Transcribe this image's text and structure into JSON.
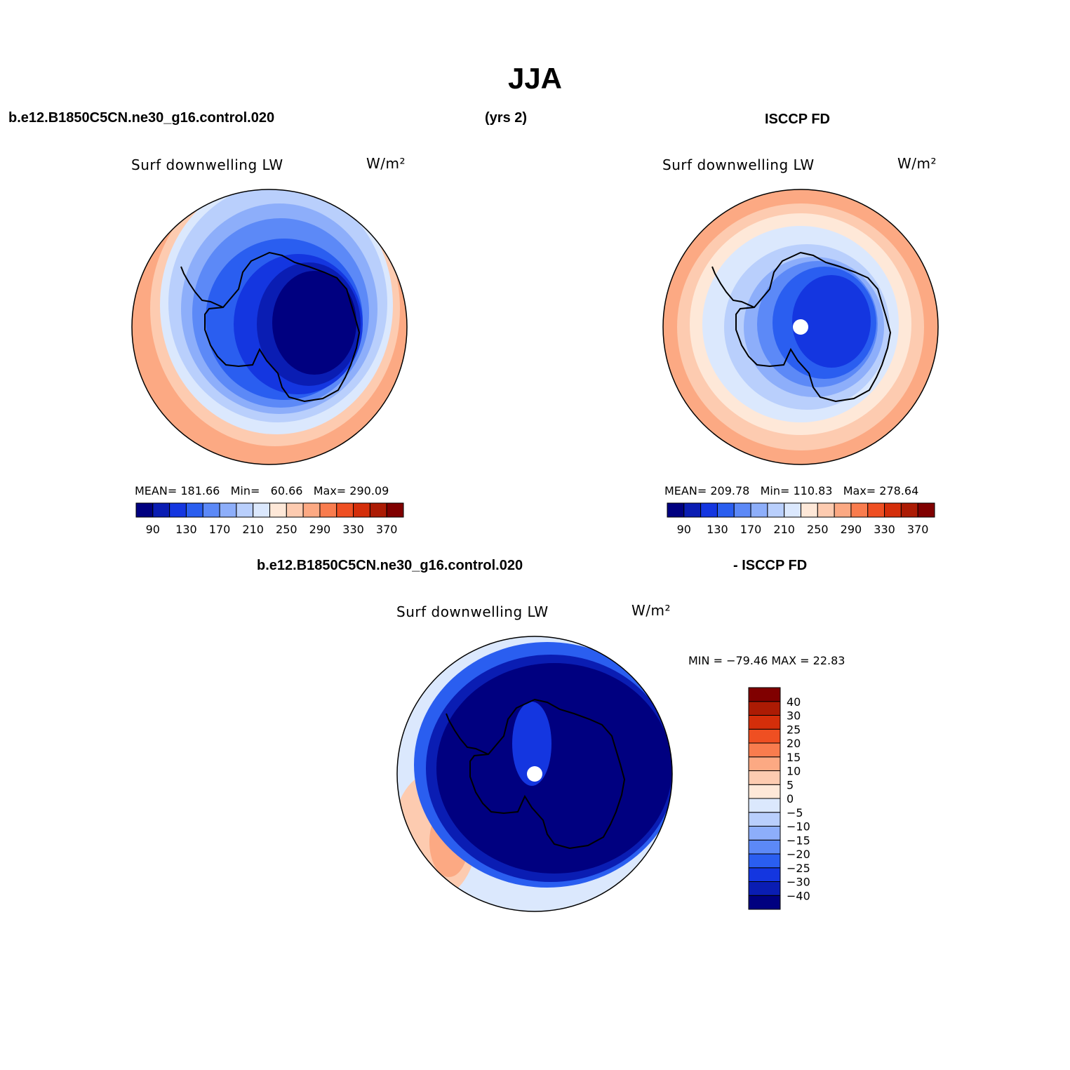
{
  "figure": {
    "season": "JJA",
    "header_left": "b.e12.B1850C5CN.ne30_g16.control.020",
    "header_mid": "(yrs 2)",
    "header_right": "ISCCP FD",
    "diff_header_left": "b.e12.B1850C5CN.ne30_g16.control.020",
    "diff_header_right": "- ISCCP FD"
  },
  "panels": [
    {
      "id": "model",
      "title": "Surf downwelling LW",
      "units": "W/m²",
      "stats": {
        "mean_label": "MEAN=",
        "mean": "181.66",
        "min_label": "Min=",
        "min": "60.66",
        "max_label": "Max=",
        "max": "290.09"
      }
    },
    {
      "id": "obs",
      "title": "Surf downwelling LW",
      "units": "W/m²",
      "stats": {
        "mean_label": "MEAN=",
        "mean": "209.78",
        "min_label": "Min=",
        "min": "110.83",
        "max_label": "Max=",
        "max": "278.64"
      }
    },
    {
      "id": "diff",
      "title": "Surf downwelling LW",
      "units": "W/m²",
      "stats": {
        "minmax": "MIN = −79.46 MAX =  22.83"
      }
    }
  ],
  "colorbar_abs": {
    "colors": [
      "#000080",
      "#0a1db3",
      "#1436e0",
      "#2a5ef0",
      "#5c89f7",
      "#8daefa",
      "#b9cffc",
      "#dbe8fd",
      "#fee8d8",
      "#fdcbb0",
      "#fca983",
      "#f97c4e",
      "#ef4f22",
      "#d42e0a",
      "#ac1b04",
      "#800000"
    ],
    "labels": [
      "90",
      "130",
      "170",
      "210",
      "250",
      "290",
      "330",
      "370"
    ]
  },
  "colorbar_diff": {
    "colors": [
      "#000080",
      "#0a1db3",
      "#1436e0",
      "#2a5ef0",
      "#5c89f7",
      "#8daefa",
      "#b9cffc",
      "#dbe8fd",
      "#fee8d8",
      "#fdcbb0",
      "#fca983",
      "#f97c4e",
      "#ef4f22",
      "#d42e0a",
      "#ac1b04",
      "#800000"
    ],
    "labels": [
      "40",
      "30",
      "25",
      "20",
      "15",
      "10",
      "5",
      "0",
      "−5",
      "−10",
      "−15",
      "−20",
      "−25",
      "−30",
      "−40"
    ]
  },
  "map": {
    "projection": "South Polar Stereographic",
    "region": "Antarctica"
  }
}
